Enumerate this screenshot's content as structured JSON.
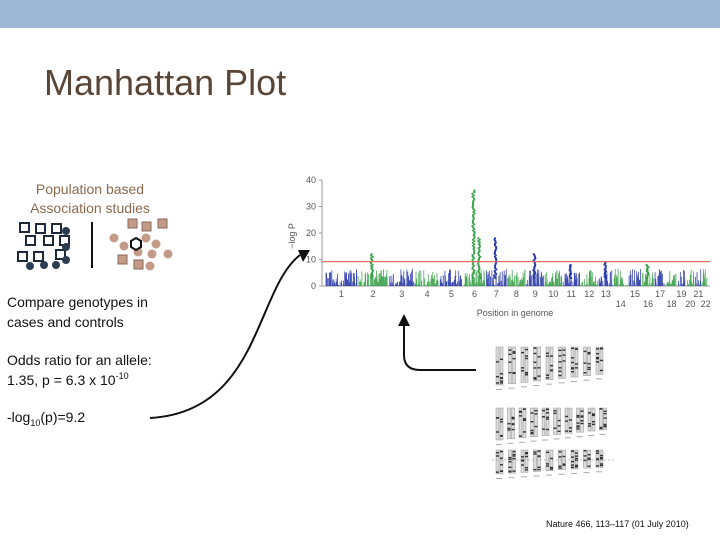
{
  "slide": {
    "title": "Manhattan Plot",
    "population_label": "Population based\nAssociation studies",
    "compare_text_1": "Compare genotypes in",
    "compare_text_2": "cases and controls",
    "odds_text_1": "Odds ratio for an allele:",
    "odds_text_2_prefix": "1.35, p = 6.3 x 10",
    "odds_text_2_exp": "-10",
    "log_prefix": "-log",
    "log_sub": "10",
    "log_suffix": "(p)=9.2",
    "citation": "Nature 466, 113–117 (01 July 2010)"
  },
  "colors": {
    "top_bar": "#9db8d6",
    "title": "#5a4636",
    "blue_series": "#2a3aa8",
    "green_series": "#3aa14a",
    "threshold": "#e07060",
    "case_fill": "#c49a88",
    "control_fill": "#2c3d52"
  },
  "chart_data": {
    "type": "scatter",
    "ylabel": "−log P",
    "xlabel": "Position in genome",
    "yticks": [
      0,
      10,
      20,
      30,
      40
    ],
    "ylim": [
      0,
      40
    ],
    "threshold": 9.2,
    "x_tick_labels_upper": [
      "1",
      "2",
      "3",
      "4",
      "5",
      "6",
      "7",
      "8",
      "9",
      "10",
      "11",
      "12",
      "13",
      "15",
      "17",
      "19",
      "21"
    ],
    "x_tick_labels_lower": [
      "14",
      "16",
      "18",
      "20",
      "22"
    ],
    "chromosomes": [
      "1",
      "2",
      "3",
      "4",
      "5",
      "6",
      "7",
      "8",
      "9",
      "10",
      "11",
      "12",
      "13",
      "14",
      "15",
      "16",
      "17",
      "18",
      "19",
      "20",
      "21",
      "22"
    ],
    "chromosome_lengths": [
      248,
      242,
      198,
      190,
      181,
      171,
      159,
      145,
      138,
      134,
      135,
      133,
      114,
      107,
      102,
      90,
      83,
      80,
      59,
      64,
      47,
      51
    ],
    "peaks": [
      {
        "chromosome": "2",
        "max_log_p": 12
      },
      {
        "chromosome": "6",
        "max_log_p": 36
      },
      {
        "chromosome": "6",
        "max_log_p": 18
      },
      {
        "chromosome": "7",
        "max_log_p": 18
      },
      {
        "chromosome": "9",
        "max_log_p": 12
      },
      {
        "chromosome": "11",
        "max_log_p": 8
      },
      {
        "chromosome": "13",
        "max_log_p": 9
      },
      {
        "chromosome": "16",
        "max_log_p": 8
      }
    ]
  }
}
